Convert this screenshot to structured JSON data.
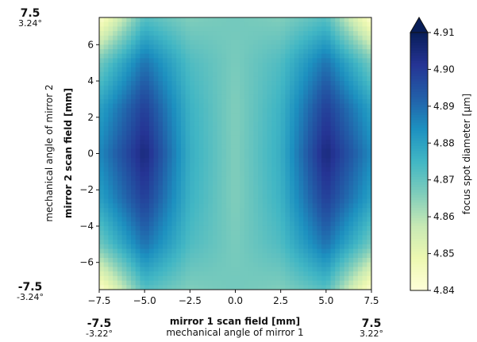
{
  "chart_data": {
    "type": "heatmap",
    "x": {
      "label": "mirror 1 scan field [mm]",
      "sublabel": "mechanical angle of mirror 1",
      "range": [
        -7.5,
        7.5
      ],
      "ticks": [
        -7.5,
        -5.0,
        -2.5,
        0.0,
        2.5,
        5.0,
        7.5
      ],
      "tick_labels": [
        "−7.5",
        "−5.0",
        "−2.5",
        "0.0",
        "2.5",
        "5.0",
        "7.5"
      ]
    },
    "y": {
      "label": "mirror 2 scan field [mm]",
      "sublabel": "mechanical angle of mirror 2",
      "range": [
        -7.5,
        7.5
      ],
      "ticks": [
        -6,
        -4,
        -2,
        0,
        2,
        4,
        6
      ],
      "tick_labels": [
        "−6",
        "−4",
        "−2",
        "0",
        "2",
        "4",
        "6"
      ]
    },
    "corner_labels": {
      "x_min": {
        "value": "-7.5",
        "angle": "-3.22°"
      },
      "x_max": {
        "value": "7.5",
        "angle": "3.22°"
      },
      "y_min": {
        "value": "-7.5",
        "angle": "-3.24°"
      },
      "y_max": {
        "value": "7.5",
        "angle": "3.24°"
      }
    },
    "colorbar": {
      "label": "focus spot diameter [μm]",
      "range": [
        4.84,
        4.91
      ],
      "ticks": [
        4.84,
        4.85,
        4.86,
        4.87,
        4.88,
        4.89,
        4.9,
        4.91
      ],
      "tick_labels": [
        "4.84",
        "4.85",
        "4.86",
        "4.87",
        "4.88",
        "4.89",
        "4.90",
        "4.91"
      ],
      "extend": "max",
      "colormap": "YlGnBu"
    },
    "grid": false,
    "field_samples": {
      "description_of_values": "focus spot diameter [μm] sampled on a grid",
      "x": [
        -7.5,
        -5.0,
        -2.5,
        0.0,
        2.5,
        5.0,
        7.5
      ],
      "y": [
        7.5,
        5.0,
        2.5,
        0.0,
        -2.5,
        -5.0,
        -7.5
      ],
      "z": [
        [
          4.842,
          4.872,
          4.866,
          4.868,
          4.866,
          4.872,
          4.842
        ],
        [
          4.868,
          4.889,
          4.873,
          4.867,
          4.873,
          4.889,
          4.868
        ],
        [
          4.88,
          4.899,
          4.876,
          4.866,
          4.876,
          4.899,
          4.88
        ],
        [
          4.885,
          4.905,
          4.877,
          4.866,
          4.877,
          4.905,
          4.885
        ],
        [
          4.88,
          4.899,
          4.876,
          4.866,
          4.876,
          4.899,
          4.88
        ],
        [
          4.868,
          4.889,
          4.873,
          4.867,
          4.873,
          4.889,
          4.868
        ],
        [
          4.842,
          4.872,
          4.866,
          4.868,
          4.866,
          4.872,
          4.842
        ]
      ]
    }
  }
}
